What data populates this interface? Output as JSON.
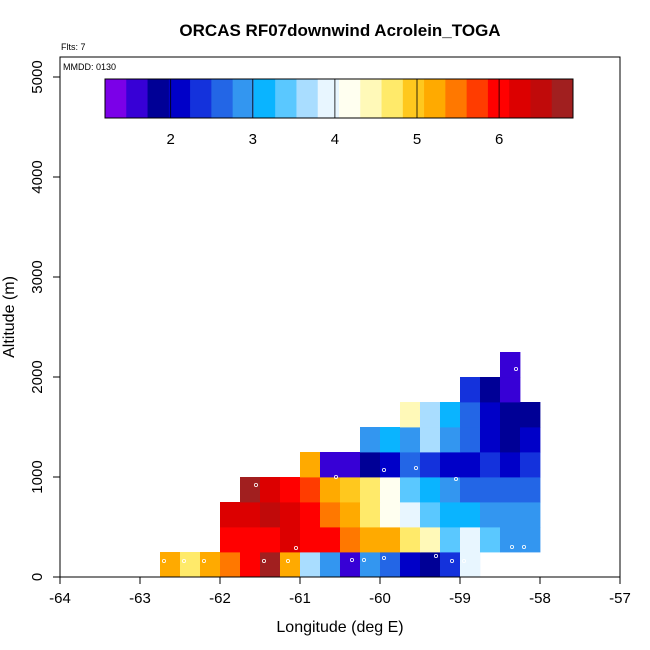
{
  "chart_data": {
    "type": "heatmap",
    "title": "ORCAS RF07downwind Acrolein_TOGA",
    "annotations": {
      "flights": "Flts: 7",
      "date": "MMDD: 0130"
    },
    "xlabel": "Longitude (deg E)",
    "ylabel": "Altitude (m)",
    "xlim": [
      -64,
      -57
    ],
    "ylim": [
      0,
      5200
    ],
    "x_ticks": [
      -64,
      -63,
      -62,
      -61,
      -60,
      -59,
      -58,
      -57
    ],
    "x_tick_labels": [
      "-64",
      "-63",
      "-62",
      "-61",
      "-60",
      "-59",
      "-58",
      "-57"
    ],
    "y_ticks": [
      0,
      1000,
      2000,
      3000,
      4000,
      5000
    ],
    "y_tick_labels": [
      "0",
      "1000",
      "2000",
      "3000",
      "4000",
      "5000"
    ],
    "cell_width_deg": 0.25,
    "cell_height_m": 250,
    "colorbar": {
      "range": [
        1.2,
        6.9
      ],
      "ticks": [
        2,
        3,
        4,
        5,
        6
      ],
      "tick_labels": [
        "2",
        "3",
        "4",
        "5",
        "6"
      ],
      "colors": [
        "#7b00e8",
        "#3700d6",
        "#000096",
        "#0000c8",
        "#1432dc",
        "#2366e6",
        "#3396f0",
        "#0ab4ff",
        "#5ac8ff",
        "#a9ddff",
        "#e8f6ff",
        "#fffff0",
        "#fff9b8",
        "#ffea6a",
        "#ffc81e",
        "#ffaa00",
        "#ff7800",
        "#ff3c00",
        "#ff0000",
        "#dc0000",
        "#c00a0a",
        "#a11f1f"
      ]
    },
    "grid": false,
    "rows": [
      {
        "altitude": 0,
        "cells": [
          {
            "lon": -62.75,
            "value": 5.1
          },
          {
            "lon": -62.5,
            "value": 4.8
          },
          {
            "lon": -62.25,
            "value": 5.1
          },
          {
            "lon": -62.0,
            "value": 5.4
          },
          {
            "lon": -61.75,
            "value": 6.0
          },
          {
            "lon": -61.5,
            "value": 6.7
          },
          {
            "lon": -61.25,
            "value": 5.2
          },
          {
            "lon": -61.0,
            "value": 3.7
          },
          {
            "lon": -60.75,
            "value": 2.9
          },
          {
            "lon": -60.5,
            "value": 1.6
          },
          {
            "lon": -60.25,
            "value": 3.0
          },
          {
            "lon": -60.0,
            "value": 2.7
          },
          {
            "lon": -59.75,
            "value": 2.2
          },
          {
            "lon": -59.5,
            "value": 1.8
          },
          {
            "lon": -59.25,
            "value": 2.3
          },
          {
            "lon": -59.0,
            "value": 3.8
          }
        ]
      },
      {
        "altitude": 250,
        "cells": [
          {
            "lon": -62.0,
            "value": 5.9
          },
          {
            "lon": -61.75,
            "value": 6.0
          },
          {
            "lon": -61.5,
            "value": 6.1
          },
          {
            "lon": -61.25,
            "value": 6.2
          },
          {
            "lon": -61.0,
            "value": 5.9
          },
          {
            "lon": -60.75,
            "value": 5.9
          },
          {
            "lon": -60.5,
            "value": 5.4
          },
          {
            "lon": -60.25,
            "value": 5.2
          },
          {
            "lon": -60.0,
            "value": 5.1
          },
          {
            "lon": -59.75,
            "value": 4.7
          },
          {
            "lon": -59.5,
            "value": 4.4
          },
          {
            "lon": -59.25,
            "value": 3.5
          },
          {
            "lon": -59.0,
            "value": 3.8
          },
          {
            "lon": -58.75,
            "value": 3.3
          },
          {
            "lon": -58.5,
            "value": 2.8
          },
          {
            "lon": -58.25,
            "value": 3.0
          }
        ]
      },
      {
        "altitude": 500,
        "cells": [
          {
            "lon": -62.0,
            "value": 6.2
          },
          {
            "lon": -61.75,
            "value": 6.3
          },
          {
            "lon": -61.5,
            "value": 6.4
          },
          {
            "lon": -61.25,
            "value": 6.2
          },
          {
            "lon": -61.0,
            "value": 6.0
          },
          {
            "lon": -60.75,
            "value": 5.5
          },
          {
            "lon": -60.5,
            "value": 5.2
          },
          {
            "lon": -60.25,
            "value": 4.8
          },
          {
            "lon": -60.0,
            "value": 4.3
          },
          {
            "lon": -59.75,
            "value": 3.9
          },
          {
            "lon": -59.5,
            "value": 3.5
          },
          {
            "lon": -59.25,
            "value": 3.2
          },
          {
            "lon": -59.0,
            "value": 3.1
          },
          {
            "lon": -58.75,
            "value": 3.0
          },
          {
            "lon": -58.5,
            "value": 2.9
          },
          {
            "lon": -58.25,
            "value": 2.9
          }
        ]
      },
      {
        "altitude": 750,
        "cells": [
          {
            "lon": -61.75,
            "value": 6.8
          },
          {
            "lon": -61.5,
            "value": 6.3
          },
          {
            "lon": -61.25,
            "value": 6.1
          },
          {
            "lon": -61.0,
            "value": 5.8
          },
          {
            "lon": -60.75,
            "value": 5.3
          },
          {
            "lon": -60.5,
            "value": 5.0
          },
          {
            "lon": -60.25,
            "value": 4.6
          },
          {
            "lon": -60.0,
            "value": 4.2
          },
          {
            "lon": -59.75,
            "value": 3.5
          },
          {
            "lon": -59.5,
            "value": 3.1
          },
          {
            "lon": -59.25,
            "value": 2.9
          },
          {
            "lon": -59.0,
            "value": 2.7
          },
          {
            "lon": -58.75,
            "value": 2.6
          },
          {
            "lon": -58.5,
            "value": 2.5
          },
          {
            "lon": -58.25,
            "value": 2.6
          }
        ]
      },
      {
        "altitude": 1000,
        "cells": [
          {
            "lon": -61.0,
            "value": 5.2
          },
          {
            "lon": -60.75,
            "value": 1.6
          },
          {
            "lon": -60.5,
            "value": 1.7
          },
          {
            "lon": -60.25,
            "value": 1.8
          },
          {
            "lon": -60.0,
            "value": 2.2
          },
          {
            "lon": -59.75,
            "value": 2.6
          },
          {
            "lon": -59.5,
            "value": 2.3
          },
          {
            "lon": -59.25,
            "value": 2.1
          },
          {
            "lon": -59.0,
            "value": 2.2
          },
          {
            "lon": -58.75,
            "value": 2.3
          },
          {
            "lon": -58.5,
            "value": 2.1
          },
          {
            "lon": -58.25,
            "value": 2.4
          }
        ]
      },
      {
        "altitude": 1250,
        "cells": [
          {
            "lon": -60.25,
            "value": 3.0
          },
          {
            "lon": -60.0,
            "value": 3.1
          },
          {
            "lon": -59.75,
            "value": 3.0
          },
          {
            "lon": -59.5,
            "value": 3.7
          },
          {
            "lon": -59.25,
            "value": 3.0
          },
          {
            "lon": -59.0,
            "value": 2.5
          },
          {
            "lon": -58.75,
            "value": 2.1
          },
          {
            "lon": -58.5,
            "value": 1.9
          },
          {
            "lon": -58.25,
            "value": 2.2
          }
        ]
      },
      {
        "altitude": 1500,
        "cells": [
          {
            "lon": -59.75,
            "value": 4.4
          },
          {
            "lon": -59.5,
            "value": 3.6
          },
          {
            "lon": -59.25,
            "value": 3.1
          },
          {
            "lon": -59.0,
            "value": 2.7
          },
          {
            "lon": -58.75,
            "value": 2.2
          },
          {
            "lon": -58.5,
            "value": 1.9
          },
          {
            "lon": -58.25,
            "value": 1.8
          }
        ]
      },
      {
        "altitude": 1750,
        "cells": [
          {
            "lon": -59.0,
            "value": 2.4
          },
          {
            "lon": -58.75,
            "value": 1.9
          },
          {
            "lon": -58.5,
            "value": 1.7
          }
        ]
      },
      {
        "altitude": 2000,
        "cells": [
          {
            "lon": -58.5,
            "value": 1.6
          }
        ]
      }
    ],
    "sample_points": [
      {
        "lon": -62.7,
        "altitude": 160
      },
      {
        "lon": -62.45,
        "altitude": 160
      },
      {
        "lon": -62.2,
        "altitude": 160
      },
      {
        "lon": -61.45,
        "altitude": 160
      },
      {
        "lon": -61.15,
        "altitude": 160
      },
      {
        "lon": -60.35,
        "altitude": 170
      },
      {
        "lon": -60.2,
        "altitude": 170
      },
      {
        "lon": -59.95,
        "altitude": 190
      },
      {
        "lon": -59.3,
        "altitude": 210
      },
      {
        "lon": -59.1,
        "altitude": 160
      },
      {
        "lon": -58.95,
        "altitude": 160
      },
      {
        "lon": -58.35,
        "altitude": 300
      },
      {
        "lon": -58.2,
        "altitude": 300
      },
      {
        "lon": -61.05,
        "altitude": 290
      },
      {
        "lon": -61.55,
        "altitude": 920
      },
      {
        "lon": -60.55,
        "altitude": 1000
      },
      {
        "lon": -59.95,
        "altitude": 1070
      },
      {
        "lon": -59.55,
        "altitude": 1090
      },
      {
        "lon": -59.05,
        "altitude": 980
      },
      {
        "lon": -58.3,
        "altitude": 2080
      }
    ]
  }
}
